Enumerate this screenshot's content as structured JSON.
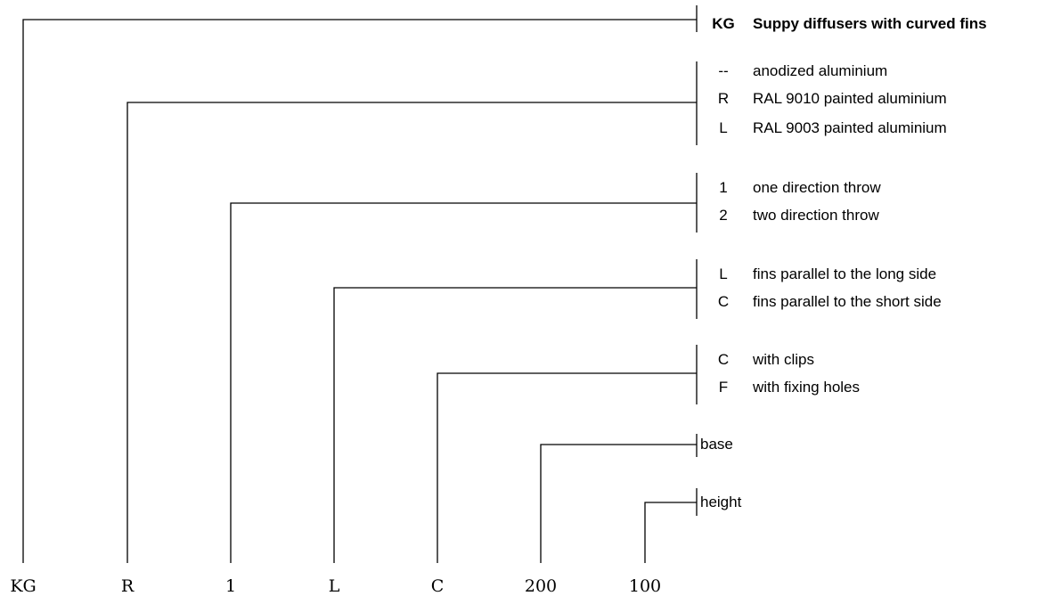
{
  "diagram": {
    "codes": [
      "KG",
      "R",
      "1",
      "L",
      "C",
      "200",
      "100"
    ],
    "groups": [
      {
        "options": [
          {
            "code": "KG",
            "text": "Suppy diffusers with curved fins",
            "bold": true
          }
        ]
      },
      {
        "options": [
          {
            "code": "--",
            "text": "anodized aluminium"
          },
          {
            "code": "R",
            "text": "RAL 9010 painted aluminium"
          },
          {
            "code": "L",
            "text": "RAL 9003 painted aluminium"
          }
        ]
      },
      {
        "options": [
          {
            "code": "1",
            "text": "one direction throw"
          },
          {
            "code": "2",
            "text": "two direction throw"
          }
        ]
      },
      {
        "options": [
          {
            "code": "L",
            "text": "fins parallel to the long side"
          },
          {
            "code": "C",
            "text": "fins parallel to the short side"
          }
        ]
      },
      {
        "options": [
          {
            "code": "C",
            "text": "with clips"
          },
          {
            "code": "F",
            "text": "with fixing holes"
          }
        ]
      },
      {
        "options": [
          {
            "code": "",
            "text": "base"
          }
        ]
      },
      {
        "options": [
          {
            "code": "",
            "text": "height"
          }
        ]
      }
    ]
  }
}
